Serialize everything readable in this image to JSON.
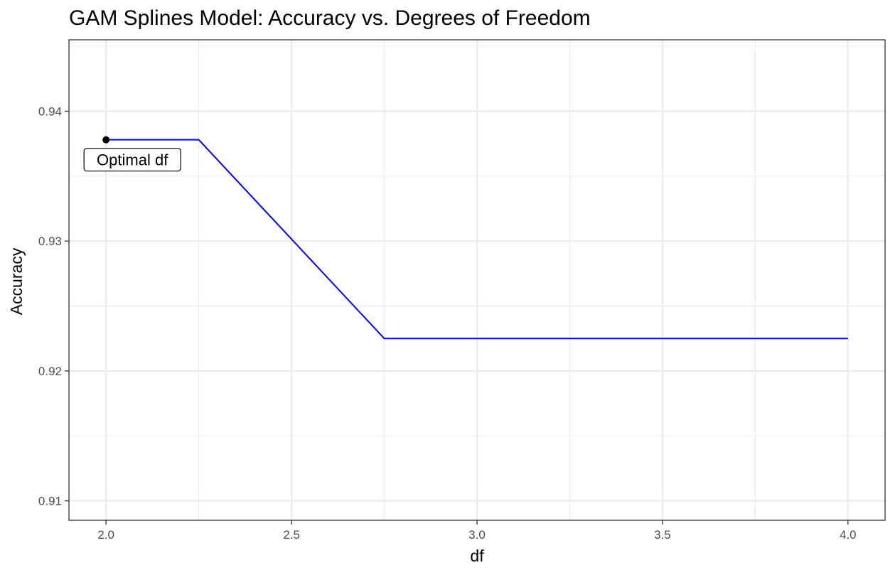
{
  "chart_data": {
    "type": "line",
    "title": "GAM Splines Model: Accuracy vs. Degrees of Freedom",
    "xlabel": "df",
    "ylabel": "Accuracy",
    "xlim": [
      1.9,
      4.1
    ],
    "ylim": [
      0.9085,
      0.9455
    ],
    "x_ticks": [
      2.0,
      2.5,
      3.0,
      3.5,
      4.0
    ],
    "x_tick_labels": [
      "2.0",
      "2.5",
      "3.0",
      "3.5",
      "4.0"
    ],
    "y_ticks": [
      0.91,
      0.92,
      0.93,
      0.94
    ],
    "y_tick_labels": [
      "0.91",
      "0.92",
      "0.93",
      "0.94"
    ],
    "grid": true,
    "legend": "none",
    "series": [
      {
        "color": "#0000ff",
        "x": [
          2.0,
          2.25,
          2.75,
          3.0,
          3.25,
          3.5,
          3.75,
          4.0
        ],
        "y": [
          0.9378,
          0.9378,
          0.9225,
          0.9225,
          0.9225,
          0.9225,
          0.9225,
          0.9225
        ]
      }
    ],
    "highlight_point": {
      "x": 2.0,
      "y": 0.9378,
      "color": "#000000"
    },
    "annotation": {
      "text": "Optimal df",
      "x": 2.0,
      "y": 0.9378
    },
    "background": "#ffffff",
    "grid_color": "#ebebeb",
    "panel_border_color": "#333333"
  }
}
